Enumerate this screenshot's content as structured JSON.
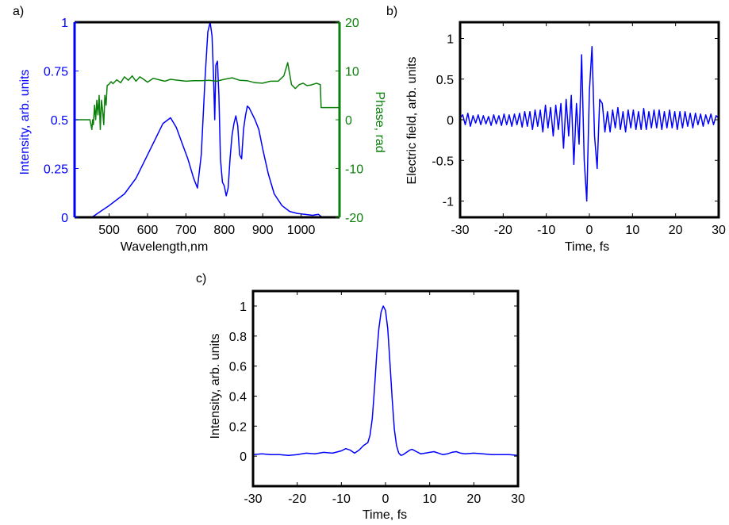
{
  "panel_labels": [
    "a)",
    "b)",
    "c)"
  ],
  "colors": {
    "intensity": "#0000ff",
    "phase": "#0a7f0a",
    "axes": "#000000"
  },
  "chart_data": [
    {
      "panel": "a)",
      "type": "line",
      "xlabel": "Wavelength,nm",
      "ylabel": "Intensity, arb. units",
      "y2label": "Phase, rad",
      "xlim": [
        410,
        1100
      ],
      "ylim": [
        0,
        1
      ],
      "y2lim": [
        -20,
        20
      ],
      "xticks": [
        "500",
        "600",
        "700",
        "800",
        "900",
        "1000"
      ],
      "yticks": [
        "0",
        "0.25",
        "0.5",
        "0.75",
        "1"
      ],
      "y2ticks": [
        "-20",
        "-10",
        "0",
        "10",
        "20"
      ],
      "series": [
        {
          "axis": "left",
          "color": "#0000ff",
          "x": [
            455,
            470,
            500,
            540,
            570,
            600,
            620,
            640,
            660,
            675,
            690,
            705,
            720,
            730,
            740,
            750,
            757,
            763,
            768,
            772,
            775,
            778,
            782,
            786,
            790,
            795,
            800,
            805,
            810,
            815,
            820,
            825,
            830,
            835,
            840,
            845,
            850,
            855,
            860,
            865,
            870,
            880,
            890,
            900,
            915,
            930,
            950,
            970,
            990,
            1010,
            1030,
            1045,
            1055
          ],
          "y": [
            0.0,
            0.02,
            0.06,
            0.12,
            0.2,
            0.32,
            0.4,
            0.48,
            0.51,
            0.46,
            0.38,
            0.3,
            0.2,
            0.15,
            0.32,
            0.72,
            0.95,
            1.0,
            0.93,
            0.72,
            0.5,
            0.78,
            0.8,
            0.62,
            0.3,
            0.18,
            0.16,
            0.11,
            0.15,
            0.3,
            0.42,
            0.48,
            0.52,
            0.47,
            0.32,
            0.3,
            0.45,
            0.52,
            0.57,
            0.56,
            0.54,
            0.5,
            0.45,
            0.35,
            0.22,
            0.12,
            0.06,
            0.03,
            0.02,
            0.015,
            0.01,
            0.015,
            0.0
          ]
        },
        {
          "axis": "right",
          "color": "#0a7f0a",
          "x": [
            410,
            450,
            455,
            457,
            459,
            462,
            465,
            468,
            471,
            474,
            477,
            480,
            483,
            486,
            489,
            492,
            495,
            500,
            505,
            510,
            520,
            530,
            540,
            550,
            560,
            570,
            580,
            590,
            600,
            615,
            630,
            645,
            660,
            680,
            700,
            720,
            740,
            760,
            780,
            800,
            820,
            840,
            860,
            880,
            900,
            920,
            940,
            955,
            965,
            975,
            985,
            995,
            1005,
            1015,
            1025,
            1040,
            1050,
            1052,
            1100
          ],
          "y": [
            0,
            0,
            -2,
            0,
            -1,
            3,
            0,
            4,
            1,
            5,
            -2,
            4,
            2,
            -1,
            5,
            3,
            7,
            7.3,
            7.8,
            7.4,
            8.2,
            7.6,
            8.8,
            8.1,
            9.0,
            7.9,
            8.8,
            8.3,
            7.7,
            8.5,
            8.2,
            7.9,
            8.3,
            8.1,
            7.9,
            8.0,
            8.0,
            8.1,
            7.9,
            8.3,
            8.6,
            8.1,
            8.0,
            7.6,
            7.5,
            7.9,
            7.9,
            9.0,
            11.7,
            7.2,
            6.4,
            7.2,
            7.5,
            7.0,
            7.1,
            7.5,
            7.2,
            2.5,
            2.5
          ]
        }
      ]
    },
    {
      "panel": "b)",
      "type": "line",
      "xlabel": "Time, fs",
      "ylabel": "Electric field, arb. units",
      "xlim": [
        -30,
        30
      ],
      "ylim": [
        -1.2,
        1.2
      ],
      "xticks": [
        "-30",
        "-20",
        "-10",
        "0",
        "10",
        "20",
        "30"
      ],
      "yticks": [
        "-1",
        "-0.5",
        "0",
        "0.5",
        "1"
      ],
      "series": [
        {
          "color": "#0000ff",
          "x": [
            -30,
            -29.4,
            -28.8,
            -28.2,
            -27.6,
            -27,
            -26.4,
            -25.8,
            -25.2,
            -24.6,
            -24,
            -23.4,
            -22.8,
            -22.2,
            -21.6,
            -21,
            -20.4,
            -19.8,
            -19.2,
            -18.6,
            -18,
            -17.4,
            -16.8,
            -16.2,
            -15.6,
            -15,
            -14.4,
            -13.8,
            -13.2,
            -12.6,
            -12,
            -11.4,
            -10.8,
            -10.2,
            -9.6,
            -9,
            -8.4,
            -7.8,
            -7.2,
            -6.6,
            -6,
            -5.4,
            -4.8,
            -4.2,
            -3.6,
            -3,
            -2.4,
            -1.8,
            -1.2,
            -0.6,
            0,
            0.6,
            1.2,
            1.8,
            2.4,
            3,
            3.6,
            4.2,
            4.8,
            5.4,
            6,
            6.6,
            7.2,
            7.8,
            8.4,
            9,
            9.6,
            10.2,
            10.8,
            11.4,
            12,
            12.6,
            13.2,
            13.8,
            14.4,
            15,
            15.6,
            16.2,
            16.8,
            17.4,
            18,
            18.6,
            19.2,
            19.8,
            20.4,
            21,
            21.6,
            22.2,
            22.8,
            23.4,
            24,
            24.6,
            25.2,
            25.8,
            26.4,
            27,
            27.6,
            28.2,
            28.8,
            29.4,
            30
          ],
          "y": [
            0.02,
            0.06,
            -0.06,
            0.08,
            -0.08,
            0.05,
            -0.04,
            0.06,
            -0.06,
            0.05,
            -0.05,
            0.04,
            -0.07,
            0.06,
            -0.05,
            0.05,
            -0.07,
            0.07,
            -0.06,
            0.06,
            -0.08,
            0.07,
            -0.06,
            0.08,
            -0.09,
            0.1,
            -0.08,
            0.1,
            -0.12,
            0.12,
            -0.08,
            0.12,
            -0.15,
            0.18,
            -0.1,
            0.15,
            -0.2,
            0.18,
            -0.12,
            0.2,
            -0.35,
            0.25,
            -0.2,
            0.3,
            -0.55,
            0.2,
            -0.3,
            0.8,
            -0.5,
            -1.0,
            0.35,
            0.9,
            -0.2,
            -0.6,
            0.25,
            0.2,
            -0.15,
            0.1,
            -0.15,
            0.12,
            -0.1,
            0.15,
            -0.12,
            0.1,
            -0.15,
            0.12,
            -0.1,
            0.12,
            -0.12,
            0.1,
            -0.12,
            0.14,
            -0.12,
            0.1,
            -0.1,
            0.12,
            -0.1,
            0.12,
            -0.12,
            0.1,
            -0.1,
            0.12,
            -0.1,
            0.1,
            -0.12,
            0.1,
            -0.1,
            0.1,
            -0.08,
            0.08,
            -0.1,
            0.08,
            -0.06,
            0.07,
            -0.08,
            0.06,
            -0.05,
            0.07,
            -0.06,
            0.05,
            0.02
          ]
        }
      ]
    },
    {
      "panel": "c)",
      "type": "line",
      "xlabel": "Time, fs",
      "ylabel": "Intensity, arb. units",
      "xlim": [
        -30,
        30
      ],
      "ylim": [
        -0.2,
        1.1
      ],
      "xticks": [
        "-30",
        "-20",
        "-10",
        "0",
        "10",
        "20",
        "30"
      ],
      "yticks": [
        "0",
        "0.2",
        "0.4",
        "0.6",
        "0.8",
        "1"
      ],
      "series": [
        {
          "color": "#0000ff",
          "x": [
            -30,
            -28,
            -26,
            -24,
            -22,
            -20,
            -18,
            -16,
            -14,
            -12,
            -10,
            -9,
            -8,
            -7,
            -6,
            -5,
            -4.5,
            -4,
            -3.5,
            -3,
            -2.5,
            -2,
            -1.5,
            -1,
            -0.5,
            0,
            0.5,
            1,
            1.5,
            2,
            2.5,
            3,
            3.5,
            4,
            4.5,
            5,
            5.5,
            6,
            7,
            8,
            9,
            10,
            11,
            12,
            13,
            14,
            15,
            16,
            17,
            18,
            20,
            22,
            24,
            26,
            28,
            30
          ],
          "y": [
            0.01,
            0.015,
            0.01,
            0.01,
            0.005,
            0.01,
            0.02,
            0.015,
            0.025,
            0.02,
            0.035,
            0.05,
            0.04,
            0.02,
            0.04,
            0.07,
            0.08,
            0.09,
            0.14,
            0.25,
            0.45,
            0.68,
            0.85,
            0.96,
            1.0,
            0.97,
            0.85,
            0.62,
            0.38,
            0.18,
            0.07,
            0.02,
            0.005,
            0.01,
            0.02,
            0.03,
            0.04,
            0.045,
            0.03,
            0.015,
            0.02,
            0.025,
            0.03,
            0.02,
            0.01,
            0.015,
            0.025,
            0.03,
            0.02,
            0.015,
            0.02,
            0.015,
            0.01,
            0.01,
            0.01,
            0.005
          ]
        }
      ]
    }
  ]
}
